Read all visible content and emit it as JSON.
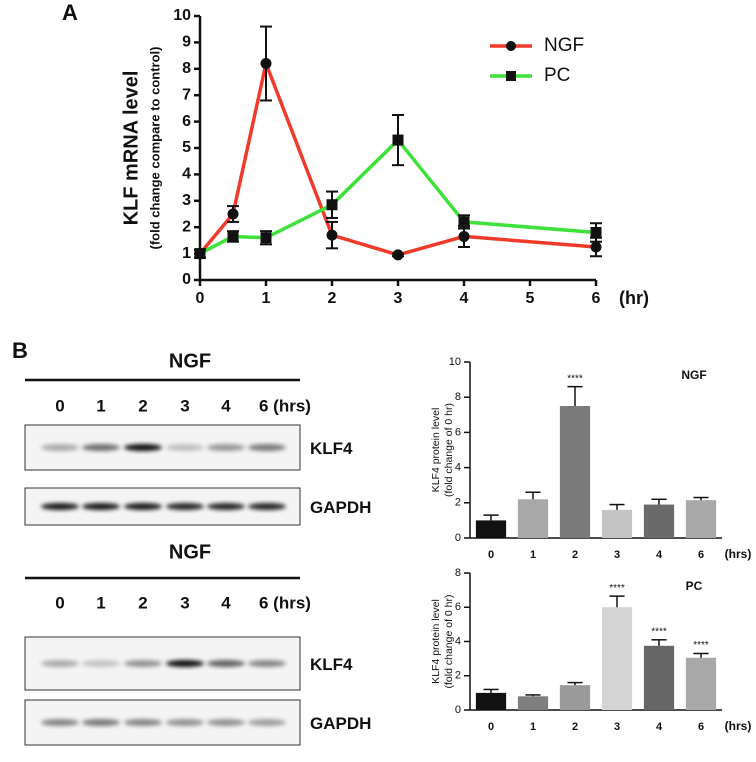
{
  "panel_labels": [
    "A",
    "B"
  ],
  "chart_data": [
    {
      "type": "line",
      "ylabel": "KLF mRNA level",
      "ylabel_note": "(fold change compare to control)",
      "xlabel": "(hr)",
      "xlim": [
        0,
        6
      ],
      "ylim": [
        0,
        10
      ],
      "xticks": [
        0,
        1,
        2,
        3,
        4,
        5,
        6
      ],
      "yticks": [
        0,
        1,
        2,
        3,
        4,
        5,
        6,
        7,
        8,
        9,
        10
      ],
      "legend": "upper right",
      "series": [
        {
          "name": "NGF",
          "color": "#f03a2a",
          "marker": "circle",
          "x": [
            0,
            0.5,
            1,
            2,
            3,
            4,
            6
          ],
          "values": [
            1,
            2.5,
            8.2,
            1.7,
            0.95,
            1.65,
            1.25
          ],
          "errors": [
            0.15,
            0.3,
            1.4,
            0.5,
            0.05,
            0.4,
            0.35
          ]
        },
        {
          "name": "PC",
          "color": "#3ee03a",
          "marker": "square",
          "x": [
            0,
            0.5,
            1,
            2,
            3,
            4,
            6
          ],
          "values": [
            1,
            1.65,
            1.6,
            2.85,
            5.3,
            2.2,
            1.8
          ],
          "errors": [
            0.15,
            0.2,
            0.25,
            0.5,
            0.95,
            0.25,
            0.35
          ]
        }
      ]
    },
    {
      "type": "bar",
      "title": "NGF",
      "ylabel": "KLF4 protein level",
      "ylabel_note": "(fold change of 0 hr)",
      "xlabel": "(hrs)",
      "categories": [
        "0",
        "1",
        "2",
        "3",
        "4",
        "6"
      ],
      "values": [
        1,
        2.2,
        7.5,
        1.6,
        1.9,
        2.15
      ],
      "errors": [
        0.3,
        0.4,
        1.1,
        0.3,
        0.3,
        0.15
      ],
      "colors": [
        "#111111",
        "#a8a8a8",
        "#7a7a7a",
        "#c4c4c4",
        "#6a6a6a",
        "#a8a8a8"
      ],
      "significance": [
        null,
        null,
        "****",
        null,
        null,
        null
      ],
      "ylim": [
        0,
        10
      ],
      "yticks": [
        0,
        2,
        4,
        6,
        8,
        10
      ]
    },
    {
      "type": "bar",
      "title": "PC",
      "ylabel": "KLF4 protein level",
      "ylabel_note": "(fold change of 0 hr)",
      "xlabel": "(hrs)",
      "categories": [
        "0",
        "1",
        "2",
        "3",
        "4",
        "6"
      ],
      "values": [
        1,
        0.8,
        1.45,
        6,
        3.75,
        3.05
      ],
      "errors": [
        0.2,
        0.08,
        0.15,
        0.65,
        0.35,
        0.25
      ],
      "colors": [
        "#111111",
        "#7f7f7f",
        "#9a9a9a",
        "#d4d4d4",
        "#666666",
        "#a8a8a8"
      ],
      "significance": [
        null,
        null,
        null,
        "****",
        "****",
        "****"
      ],
      "ylim": [
        0,
        8
      ],
      "yticks": [
        0,
        2,
        4,
        6,
        8
      ]
    }
  ],
  "blots": [
    {
      "title": "NGF",
      "lanes": [
        "0",
        "1",
        "2",
        "3",
        "4",
        "6 (hrs)"
      ],
      "rows": [
        "KLF4",
        "GAPDH"
      ]
    },
    {
      "title": "NGF",
      "lanes": [
        "0",
        "1",
        "2",
        "3",
        "4",
        "6 (hrs)"
      ],
      "rows": [
        "KLF4",
        "GAPDH"
      ]
    }
  ]
}
